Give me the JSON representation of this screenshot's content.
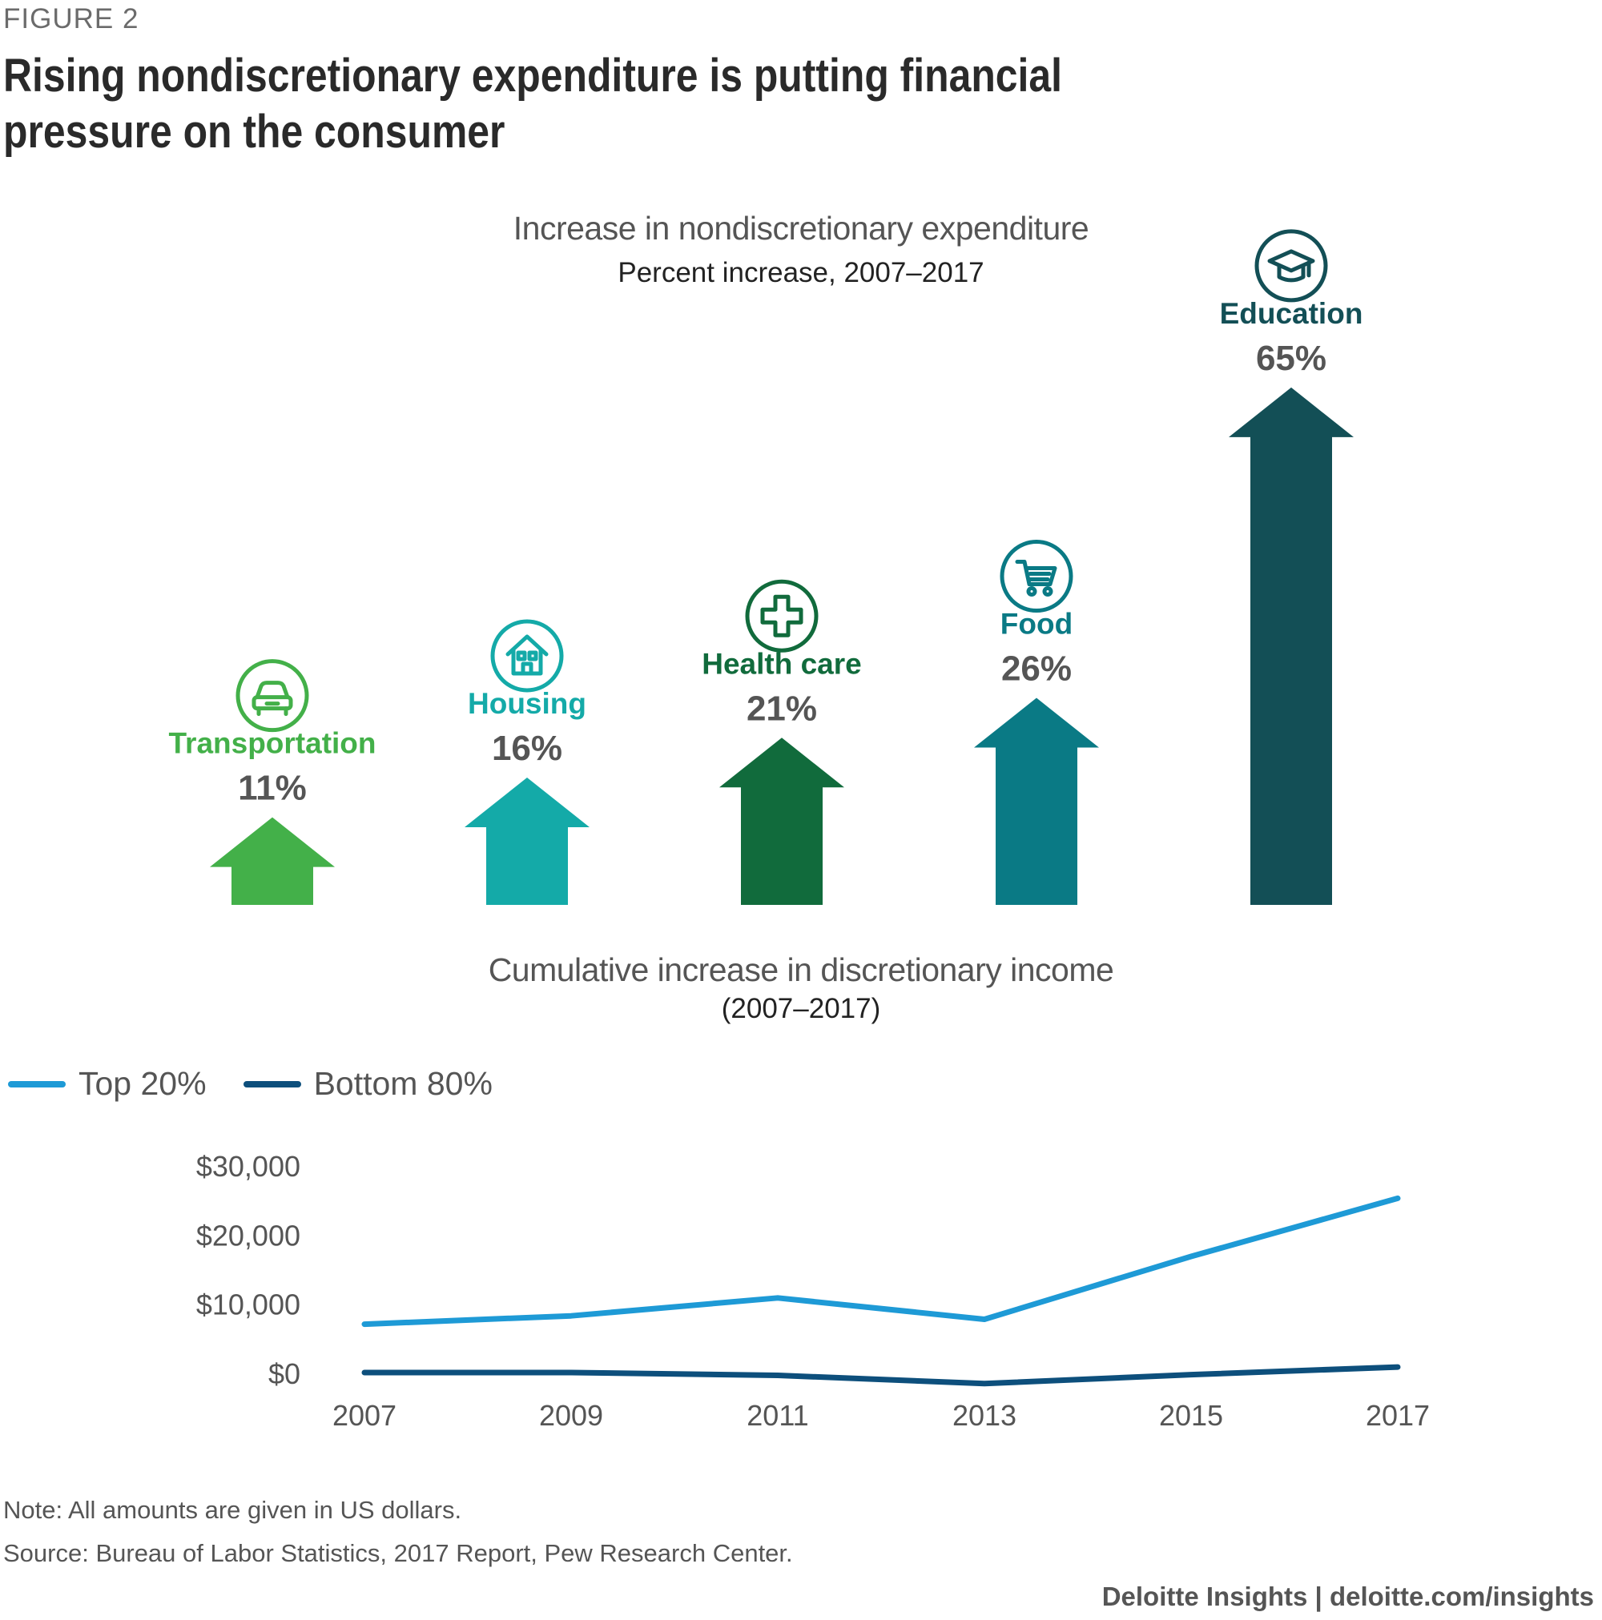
{
  "figure_label": "FIGURE 2",
  "title": "Rising nondiscretionary expenditure is putting financial pressure on the consumer",
  "note": "Note: All amounts are given in US dollars.",
  "source": "Source: Bureau of Labor Statistics, 2017 Report, Pew Research Center.",
  "footer": "Deloitte Insights | deloitte.com/insights",
  "chart_data": [
    {
      "type": "bar",
      "title": "Increase in nondiscretionary expenditure",
      "subtitle": "Percent increase, 2007–2017",
      "categories": [
        "Transportation",
        "Housing",
        "Health care",
        "Food",
        "Education"
      ],
      "values": [
        11,
        16,
        21,
        26,
        65
      ],
      "value_labels": [
        "11%",
        "16%",
        "21%",
        "26%",
        "65%"
      ],
      "colors": [
        "#43b049",
        "#14aaa8",
        "#116b3c",
        "#0a7a85",
        "#134f56"
      ],
      "icons": [
        "car-icon",
        "house-icon",
        "medical-cross-icon",
        "shopping-cart-icon",
        "graduation-cap-icon"
      ]
    },
    {
      "type": "line",
      "title": "Cumulative increase in discretionary income",
      "subtitle": "(2007–2017)",
      "x": [
        "2007",
        "2009",
        "2011",
        "2013",
        "2015",
        "2017"
      ],
      "y_ticks": [
        "$30,000",
        "$20,000",
        "$10,000",
        "$0"
      ],
      "ylim": [
        0,
        30000
      ],
      "legend_placement": "top-left",
      "series": [
        {
          "name": "Top 20%",
          "color": "#1e9ad6",
          "values": [
            7000,
            8200,
            10800,
            7700,
            16800,
            25200
          ]
        },
        {
          "name": "Bottom 80%",
          "color": "#0d4f7c",
          "values": [
            0,
            0,
            -400,
            -1600,
            -300,
            800
          ]
        }
      ]
    }
  ]
}
